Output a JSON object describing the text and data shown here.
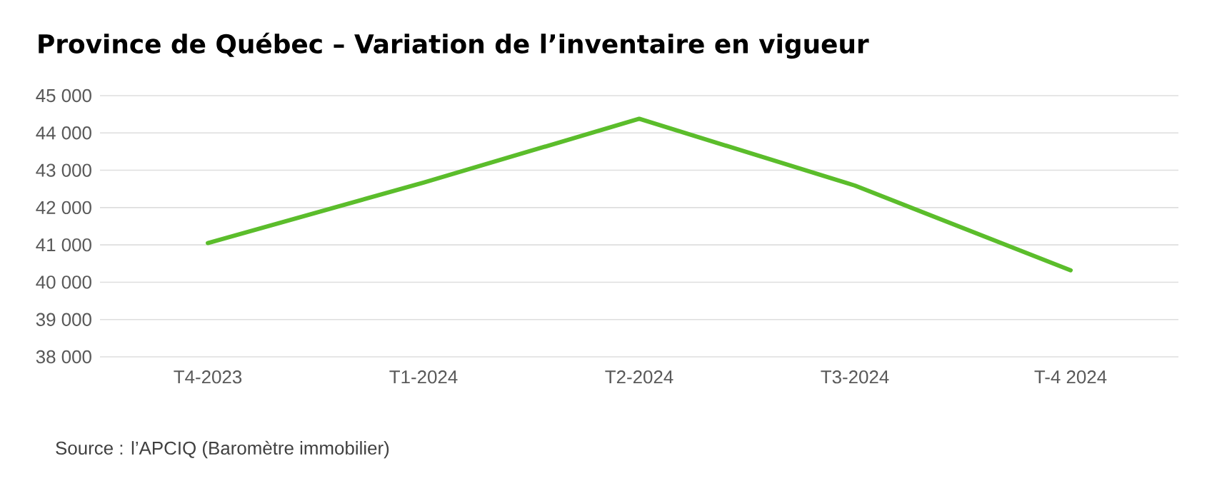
{
  "chart_data": {
    "type": "line",
    "title": "Province de Québec – Variation de l’inventaire en vigueur",
    "categories": [
      "T4-2023",
      "T1-2024",
      "T2-2024",
      "T3-2024",
      "T-4 2024"
    ],
    "series": [
      {
        "color": "#5bbd2b",
        "values": [
          41050,
          42670,
          44380,
          42590,
          40320
        ]
      }
    ],
    "ylim": [
      38000,
      45000
    ],
    "yticks": [
      {
        "value": 38000,
        "label": "38 000"
      },
      {
        "value": 39000,
        "label": "39 000"
      },
      {
        "value": 40000,
        "label": "40 000"
      },
      {
        "value": 41000,
        "label": "41 000"
      },
      {
        "value": 42000,
        "label": "42 000"
      },
      {
        "value": 43000,
        "label": "43 000"
      },
      {
        "value": 44000,
        "label": "44 000"
      },
      {
        "value": 45000,
        "label": "45 000"
      }
    ],
    "grid": "y",
    "marker": "none",
    "line_style": "solid",
    "annotations": [
      "Source : l’APCIQ (Baromètre immobilier)"
    ]
  }
}
